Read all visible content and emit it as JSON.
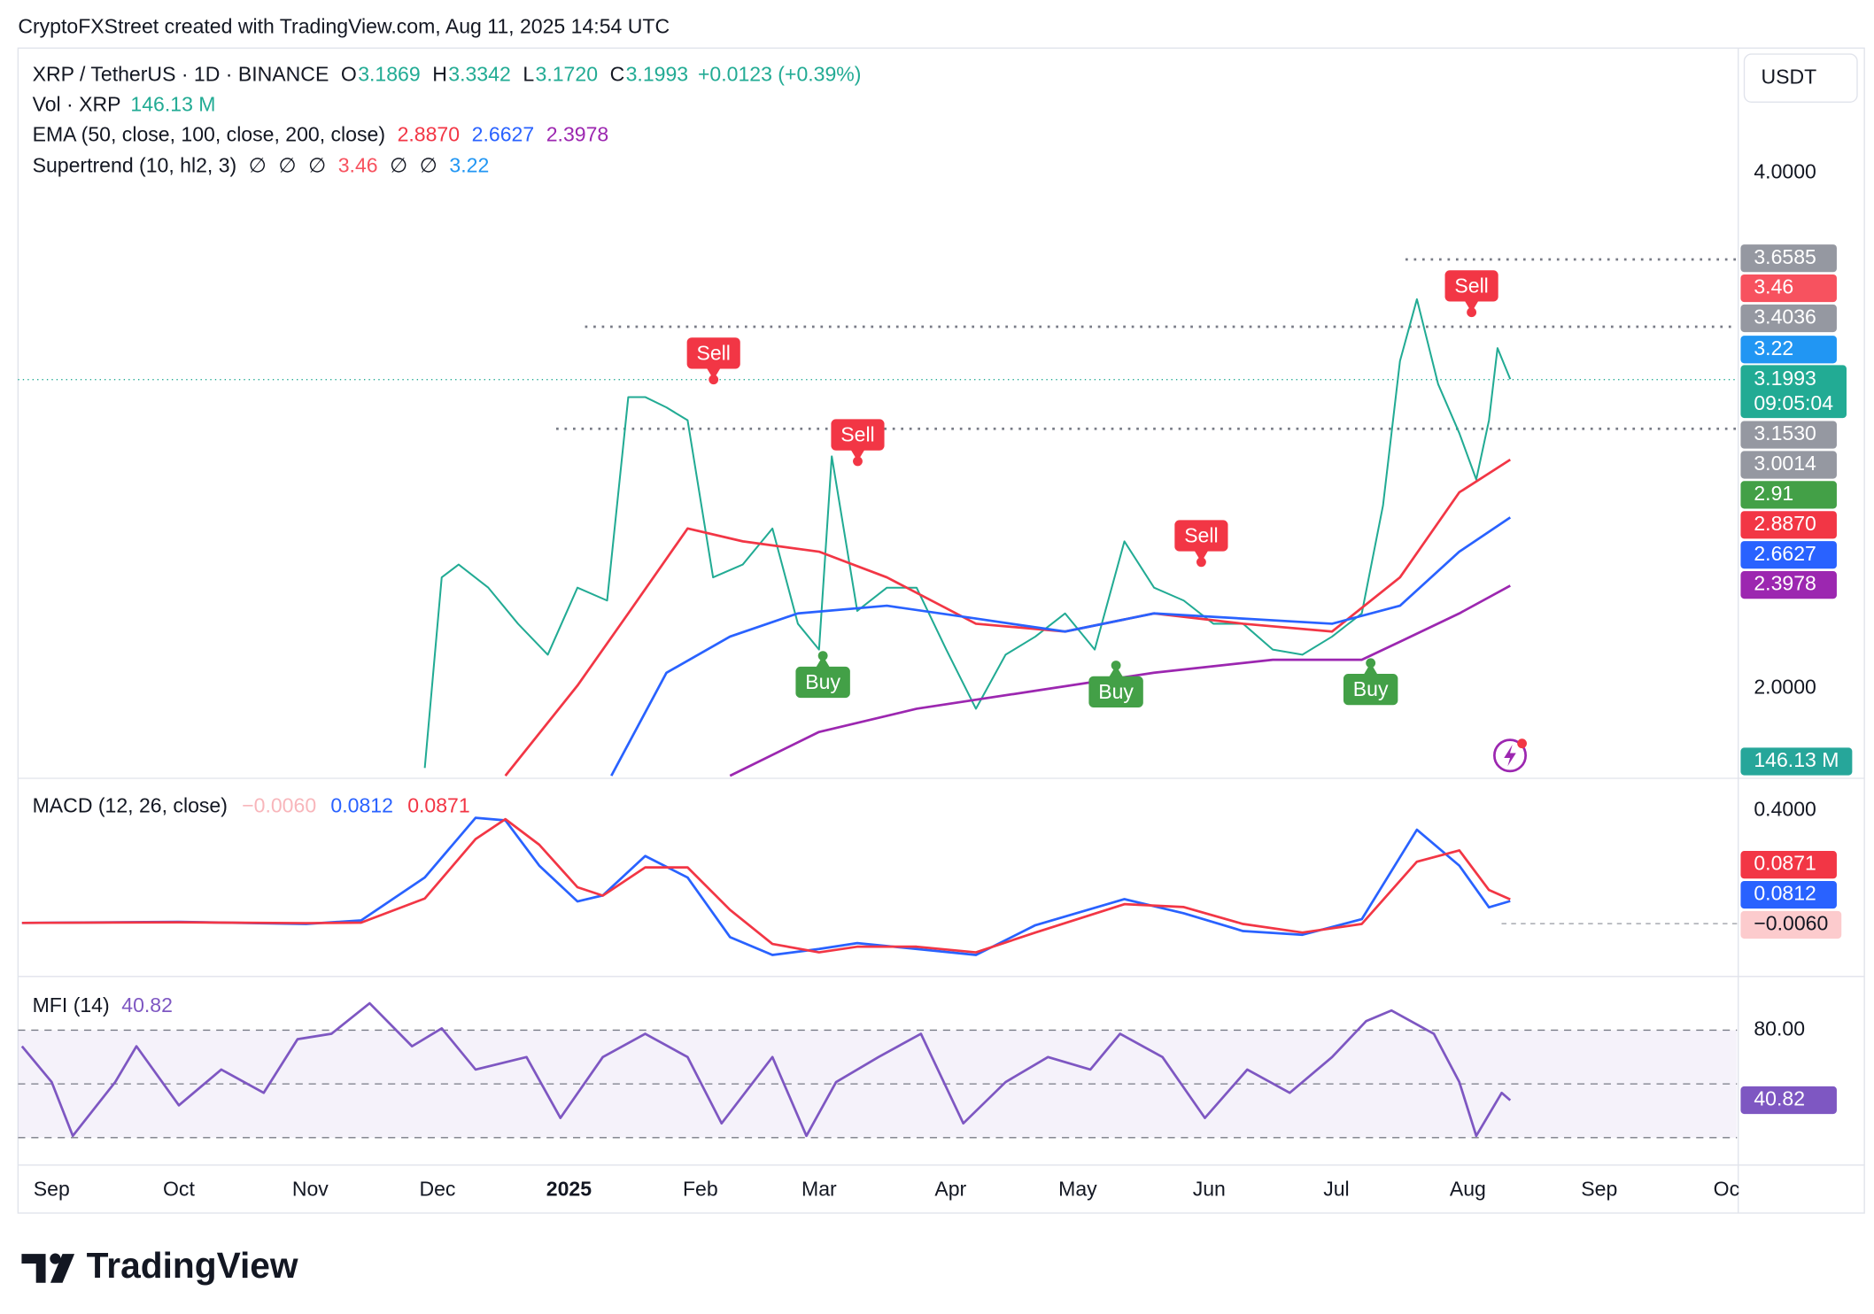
{
  "header": {
    "attribution": "CryptoFXStreet created with TradingView.com, Aug 11, 2025 14:54 UTC"
  },
  "legend": {
    "symbol": "XRP / TetherUS · 1D · BINANCE",
    "ohlc_color": "#22ab94",
    "ohlc": [
      {
        "key": "O",
        "value": "3.1869"
      },
      {
        "key": "H",
        "value": "3.3342"
      },
      {
        "key": "L",
        "value": "3.1720"
      },
      {
        "key": "C",
        "value": "3.1993"
      }
    ],
    "change": "+0.0123 (+0.39%)",
    "volume": {
      "label": "Vol · XRP",
      "value": "146.13 M",
      "color": "#22ab94"
    },
    "ema": {
      "label": "EMA (50, close, 100, close, 200, close)",
      "values": [
        {
          "text": "2.8870",
          "color": "#f23645"
        },
        {
          "text": "2.6627",
          "color": "#2962ff"
        },
        {
          "text": "2.3978",
          "color": "#9c27b0"
        }
      ]
    },
    "supertrend": {
      "label": "Supertrend (10, hl2, 3)",
      "values": [
        {
          "text": "∅",
          "color": "#131722"
        },
        {
          "text": "∅",
          "color": "#131722"
        },
        {
          "text": "∅",
          "color": "#131722"
        },
        {
          "text": "3.46",
          "color": "#f7525f"
        },
        {
          "text": "∅",
          "color": "#131722"
        },
        {
          "text": "∅",
          "color": "#131722"
        },
        {
          "text": "3.22",
          "color": "#2196f3"
        }
      ]
    }
  },
  "price_scale": {
    "currency": "USDT",
    "badges": [
      {
        "text": "3.6585",
        "color": "#9598a1"
      },
      {
        "text": "3.46",
        "color": "#f7525f"
      },
      {
        "text": "3.4036",
        "color": "#9598a1"
      },
      {
        "text": "3.22",
        "color": "#2196f3"
      },
      {
        "text": "3.1993",
        "sub": "09:05:04",
        "color": "#22ab94"
      },
      {
        "text": "3.1530",
        "color": "#9598a1"
      },
      {
        "text": "3.0014",
        "color": "#9598a1"
      },
      {
        "text": "2.91",
        "color": "#43a047"
      },
      {
        "text": "2.8870",
        "color": "#f23645"
      },
      {
        "text": "2.6627",
        "color": "#2962ff"
      },
      {
        "text": "2.3978",
        "color": "#9c27b0"
      },
      {
        "text": "146.13 M",
        "color": "#26a69a"
      }
    ]
  },
  "signals": [
    {
      "text": "Sell",
      "color": "#f23645"
    },
    {
      "text": "Sell",
      "color": "#f23645"
    },
    {
      "text": "Sell",
      "color": "#f23645"
    },
    {
      "text": "Sell",
      "color": "#f23645"
    },
    {
      "text": "Buy",
      "color": "#43a047"
    },
    {
      "text": "Buy",
      "color": "#43a047"
    },
    {
      "text": "Buy",
      "color": "#43a047"
    }
  ],
  "macd": {
    "label": "MACD (12, 26, close)",
    "values": [
      {
        "text": "−0.0060",
        "color": "#f8b6bb"
      },
      {
        "text": "0.0812",
        "color": "#2962ff"
      },
      {
        "text": "0.0871",
        "color": "#f23645"
      }
    ],
    "badges": [
      {
        "text": "0.0871",
        "color": "#f23645",
        "text_color": "#ffffff"
      },
      {
        "text": "0.0812",
        "color": "#2962ff",
        "text_color": "#ffffff"
      },
      {
        "text": "−0.0060",
        "color": "#fccbcd",
        "text_color": "#131722"
      }
    ]
  },
  "mfi": {
    "label": "MFI (14)",
    "value": "40.82",
    "color": "#7e57c2",
    "badge": "40.82"
  },
  "logo": "TradingView",
  "chart_data": [
    {
      "type": "line",
      "grid": false,
      "xlim": [
        -7.93,
        397.5
      ],
      "ylim": [
        1.65,
        4.485
      ],
      "yticks": [
        {
          "value": 2,
          "label": "2.0000"
        },
        {
          "value": 4,
          "label": "4.0000"
        }
      ],
      "series": [
        {
          "color": "#22ab94",
          "x": [
            88,
            92,
            96,
            103,
            110,
            117,
            124,
            131,
            136,
            140,
            145,
            150,
            156,
            163,
            170,
            176,
            181,
            184,
            190,
            197,
            204,
            211,
            218,
            225,
            232,
            239,
            246,
            253,
            260,
            267,
            274,
            281,
            288,
            295,
            302,
            309,
            314,
            318,
            322,
            327,
            332,
            336,
            339,
            341,
            344
          ],
          "values": [
            1.69,
            2.43,
            2.48,
            2.39,
            2.25,
            2.13,
            2.39,
            2.34,
            3.13,
            3.13,
            3.09,
            3.04,
            2.43,
            2.48,
            2.62,
            2.25,
            2.15,
            2.9,
            2.3,
            2.39,
            2.39,
            2.15,
            1.92,
            2.13,
            2.2,
            2.29,
            2.15,
            2.57,
            2.39,
            2.34,
            2.25,
            2.25,
            2.15,
            2.13,
            2.2,
            2.29,
            2.71,
            3.27,
            3.51,
            3.18,
            2.99,
            2.81,
            3.04,
            3.32,
            3.1993
          ]
        },
        {
          "color": "#f23645",
          "x": [
            107,
            124,
            136,
            150,
            163,
            181,
            197,
            218,
            239,
            260,
            281,
            302,
            318,
            332,
            344
          ],
          "values": [
            1.66,
            2.01,
            2.29,
            2.62,
            2.57,
            2.53,
            2.43,
            2.25,
            2.22,
            2.29,
            2.25,
            2.22,
            2.43,
            2.76,
            2.887
          ]
        },
        {
          "color": "#2962ff",
          "x": [
            132,
            145,
            160,
            176,
            197,
            218,
            239,
            260,
            281,
            302,
            318,
            332,
            344
          ],
          "values": [
            1.66,
            2.06,
            2.2,
            2.29,
            2.32,
            2.27,
            2.22,
            2.29,
            2.27,
            2.25,
            2.32,
            2.53,
            2.6627
          ]
        },
        {
          "color": "#9c27b0",
          "x": [
            160,
            181,
            204,
            232,
            260,
            288,
            309,
            318,
            332,
            344
          ],
          "values": [
            1.66,
            1.83,
            1.92,
            1.99,
            2.06,
            2.11,
            2.11,
            2.18,
            2.29,
            2.3978
          ]
        }
      ]
    },
    {
      "type": "line",
      "grid": false,
      "xlim": [
        -7.93,
        397.5
      ],
      "ylim": [
        -0.185,
        0.51
      ],
      "yticks": [
        {
          "value": 0.4,
          "label": "0.4000"
        }
      ],
      "series": [
        {
          "color": "#2962ff",
          "x": [
            -7,
            30,
            60,
            73,
            88,
            100,
            107,
            115,
            124,
            130,
            140,
            150,
            160,
            170,
            181,
            190,
            204,
            218,
            232,
            253,
            267,
            281,
            295,
            309,
            322,
            332,
            339,
            344
          ],
          "values": [
            0.004,
            0.008,
            0,
            0.013,
            0.164,
            0.375,
            0.366,
            0.206,
            0.08,
            0.101,
            0.24,
            0.164,
            -0.046,
            -0.109,
            -0.088,
            -0.067,
            -0.088,
            -0.109,
            -0.004,
            0.088,
            0.038,
            -0.025,
            -0.038,
            0.017,
            0.333,
            0.206,
            0.059,
            0.0812
          ]
        },
        {
          "color": "#f23645",
          "x": [
            -7,
            30,
            60,
            73,
            88,
            100,
            107,
            115,
            124,
            130,
            140,
            150,
            160,
            170,
            181,
            190,
            204,
            218,
            232,
            253,
            267,
            281,
            295,
            309,
            322,
            332,
            339,
            344
          ],
          "values": [
            0.004,
            0.006,
            0.003,
            0.005,
            0.09,
            0.3,
            0.37,
            0.28,
            0.13,
            0.1,
            0.2,
            0.2,
            0.05,
            -0.07,
            -0.1,
            -0.08,
            -0.08,
            -0.1,
            -0.03,
            0.07,
            0.06,
            0,
            -0.03,
            0,
            0.22,
            0.26,
            0.12,
            0.0871
          ]
        }
      ]
    },
    {
      "type": "line",
      "grid": false,
      "xlim": [
        -7.93,
        397.5
      ],
      "ylim": [
        4.7,
        109.3
      ],
      "yticks": [
        {
          "value": 80,
          "label": "80.00"
        }
      ],
      "band_lines": [
        80,
        50,
        20
      ],
      "band_color": "#7e57c2",
      "xticks": [
        {
          "value": 0,
          "label": "Sep"
        },
        {
          "value": 30,
          "label": "Oct"
        },
        {
          "value": 61,
          "label": "Nov"
        },
        {
          "value": 91,
          "label": "Dec"
        },
        {
          "value": 122,
          "label": "2025"
        },
        {
          "value": 153,
          "label": "Feb"
        },
        {
          "value": 181,
          "label": "Mar"
        },
        {
          "value": 212,
          "label": "Apr"
        },
        {
          "value": 242,
          "label": "May"
        },
        {
          "value": 273,
          "label": "Jun"
        },
        {
          "value": 303,
          "label": "Jul"
        },
        {
          "value": 334,
          "label": "Aug"
        },
        {
          "value": 365,
          "label": "Sep"
        },
        {
          "value": 395,
          "label": "Oc"
        }
      ],
      "series": [
        {
          "color": "#7e57c2",
          "x": [
            -7,
            0,
            5,
            15,
            20,
            30,
            40,
            50,
            58,
            66,
            75,
            85,
            92,
            100,
            112,
            120,
            130,
            140,
            150,
            158,
            170,
            178,
            185,
            195,
            205,
            215,
            225,
            235,
            245,
            252,
            262,
            272,
            282,
            292,
            302,
            310,
            316,
            326,
            332,
            336,
            342,
            344
          ],
          "values": [
            71,
            51,
            21,
            51,
            71,
            38,
            58,
            45,
            75,
            78,
            95,
            71,
            81,
            58,
            65,
            31,
            65,
            78,
            65,
            28,
            65,
            21,
            51,
            65,
            78,
            28,
            51,
            65,
            58,
            78,
            65,
            31,
            58,
            45,
            65,
            85,
            91,
            78,
            51,
            21,
            45,
            40.82
          ]
        }
      ]
    }
  ]
}
